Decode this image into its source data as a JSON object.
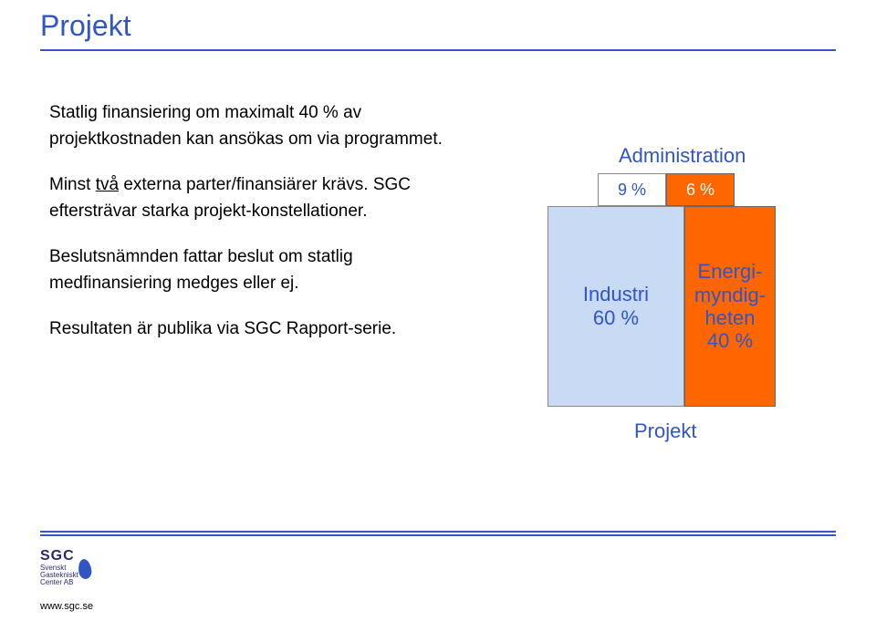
{
  "colors": {
    "title": "#3155c4",
    "rule": "#3155c4",
    "admin_label": "#3155c4",
    "admin_left_bg": "#ffffff",
    "admin_left_text": "#3155c4",
    "admin_right_bg": "#ff6600",
    "admin_right_text": "#ffffff",
    "proj_left_bg": "#c9daf5",
    "proj_left_text": "#3155c4",
    "proj_right_bg": "#ff6600",
    "proj_right_text": "#3155c4",
    "proj_label": "#3155c4",
    "flame": "#3155c4"
  },
  "title": "Projekt",
  "body": {
    "p1": "Statlig finansiering om maximalt 40 % av projektkostnaden kan ansökas om via programmet.",
    "p2a": "Minst ",
    "p2u": "två",
    "p2b": " externa parter/finansiärer krävs. SGC eftersträvar starka projekt-konstellationer.",
    "p3": "Beslutsnämnden fattar beslut om statlig medfinansiering medges eller ej.",
    "p4": "Resultaten är publika via SGC Rapport-serie."
  },
  "chart": {
    "admin_label": "Administration",
    "admin_left": "9 %",
    "admin_right": "6 %",
    "proj_left_l1": "Industri",
    "proj_left_l2": "60 %",
    "proj_right_l1": "Energi-",
    "proj_right_l2": "myndig-",
    "proj_right_l3": "heten",
    "proj_right_l4": "40 %",
    "project_label": "Projekt"
  },
  "logo": {
    "main": "SGC",
    "sub1": "Svenskt",
    "sub2": "Gastekniskt",
    "sub3": "Center AB"
  },
  "url": "www.sgc.se"
}
